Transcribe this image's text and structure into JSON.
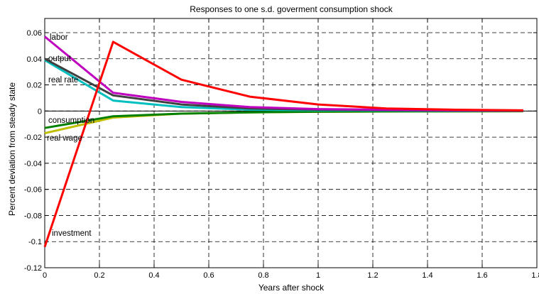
{
  "chart_data": {
    "type": "line",
    "title": "Responses to one s.d.   goverment  consumption shock",
    "xlabel": "Years after shock",
    "ylabel": "Percent deviation from steady state",
    "xlim": [
      0,
      1.8
    ],
    "ylim": [
      -0.12,
      0.065
    ],
    "xticks": [
      0,
      0.2,
      0.4,
      0.6,
      0.8,
      1,
      1.2,
      1.4,
      1.6,
      1.8
    ],
    "xtick_labels": [
      "0",
      "0.2",
      "0.4",
      "0.6",
      "0.8",
      "1",
      "1.2",
      "1.4",
      "1.6",
      "1.8"
    ],
    "yticks": [
      -0.12,
      -0.1,
      -0.08,
      -0.06,
      -0.04,
      -0.02,
      0,
      0.02,
      0.04,
      0.06
    ],
    "ytick_labels": [
      "-0.12",
      "-0.1",
      "-0.08",
      "-0.06",
      "-0.04",
      "-0.02",
      "0",
      "0.02",
      "0.04",
      "0.06"
    ],
    "grid": true,
    "x": [
      0,
      0.25,
      0.5,
      0.75,
      1.0,
      1.25,
      1.5,
      1.75
    ],
    "series": [
      {
        "name": "investment",
        "color": "#ff0000",
        "values": [
          -0.104,
          0.053,
          0.024,
          0.011,
          0.005,
          0.002,
          0.001,
          0.0005
        ]
      },
      {
        "name": "labor",
        "color": "#bf00bf",
        "values": [
          0.057,
          0.014,
          0.007,
          0.003,
          0.0015,
          0.001,
          0.0005,
          0.0003
        ]
      },
      {
        "name": "output",
        "color": "#404040",
        "values": [
          0.04,
          0.012,
          0.005,
          0.002,
          0.001,
          0.0005,
          0.0003,
          0.0002
        ]
      },
      {
        "name": "real rate",
        "color": "#00bfbf",
        "values": [
          0.039,
          0.008,
          0.003,
          0.001,
          0.0005,
          0.0002,
          0.0001,
          0.0001
        ]
      },
      {
        "name": "consumption",
        "color": "#007f00",
        "values": [
          -0.013,
          -0.004,
          -0.002,
          -0.001,
          -0.0005,
          -0.0003,
          -0.0002,
          -0.0001
        ]
      },
      {
        "name": "real wage",
        "color": "#bfbf00",
        "values": [
          -0.017,
          -0.005,
          -0.002,
          -0.001,
          -0.0006,
          -0.0004,
          -0.0003,
          -0.0002
        ]
      }
    ]
  }
}
